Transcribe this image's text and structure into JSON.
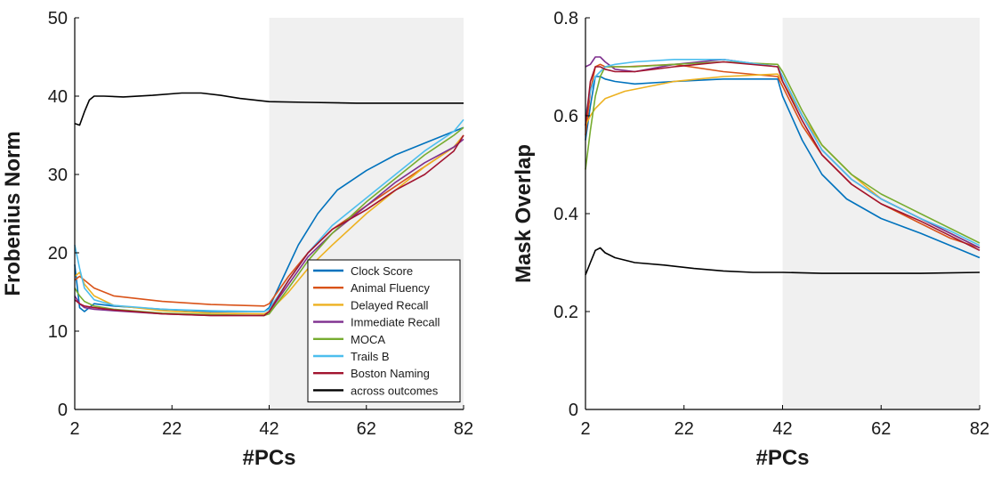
{
  "chart_data": [
    {
      "type": "line",
      "xlabel": "#PCs",
      "ylabel": "Frobenius Norm",
      "xlim": [
        2,
        82
      ],
      "ylim": [
        0,
        50
      ],
      "xticks": [
        "2",
        "22",
        "42",
        "62",
        "82"
      ],
      "yticks": [
        "0",
        "10",
        "20",
        "30",
        "40",
        "50"
      ],
      "shaded_region": [
        42,
        82
      ],
      "shaded_color": "#f0f0f0",
      "legend_position": "lower-right",
      "series": [
        {
          "name": "Clock Score",
          "color": "#0072BD",
          "x": [
            2,
            3,
            4,
            6,
            10,
            20,
            30,
            41,
            42,
            45,
            48,
            52,
            56,
            62,
            68,
            74,
            80,
            82
          ],
          "y": [
            18.5,
            13.0,
            12.5,
            13.5,
            13.2,
            12.8,
            12.5,
            12.5,
            13.0,
            17.0,
            21.0,
            25.0,
            28.0,
            30.5,
            32.5,
            34.0,
            35.5,
            36.0
          ]
        },
        {
          "name": "Animal Fluency",
          "color": "#D95319",
          "x": [
            2,
            3,
            4,
            6,
            10,
            20,
            30,
            41,
            42,
            46,
            50,
            55,
            62,
            68,
            74,
            80,
            82
          ],
          "y": [
            16.5,
            17.0,
            16.5,
            15.5,
            14.5,
            13.8,
            13.4,
            13.2,
            13.5,
            17.0,
            20.0,
            23.0,
            26.0,
            28.5,
            31.0,
            33.5,
            35.0
          ]
        },
        {
          "name": "Delayed Recall",
          "color": "#EDB120",
          "x": [
            2,
            3,
            4,
            6,
            10,
            20,
            30,
            41,
            42,
            46,
            50,
            55,
            62,
            68,
            74,
            80,
            82
          ],
          "y": [
            17.0,
            17.5,
            16.0,
            14.5,
            13.3,
            12.6,
            12.3,
            12.2,
            12.5,
            15.0,
            18.0,
            21.0,
            25.0,
            28.0,
            31.0,
            33.5,
            35.0
          ]
        },
        {
          "name": "Immediate Recall",
          "color": "#7E2F8E",
          "x": [
            2,
            3,
            4,
            6,
            10,
            20,
            30,
            41,
            42,
            46,
            50,
            55,
            62,
            68,
            74,
            80,
            82
          ],
          "y": [
            14.5,
            13.5,
            13.0,
            12.8,
            12.6,
            12.2,
            12.0,
            12.0,
            12.5,
            16.0,
            19.5,
            22.5,
            26.0,
            29.0,
            31.5,
            33.5,
            34.5
          ]
        },
        {
          "name": "MOCA",
          "color": "#77AC30",
          "x": [
            2,
            3,
            4,
            6,
            10,
            20,
            30,
            41,
            42,
            46,
            50,
            55,
            62,
            68,
            74,
            80,
            82
          ],
          "y": [
            15.5,
            14.5,
            13.8,
            13.2,
            12.8,
            12.3,
            12.1,
            12.0,
            12.2,
            15.5,
            19.0,
            22.5,
            26.5,
            29.5,
            32.5,
            35.0,
            36.0
          ]
        },
        {
          "name": "Trails B",
          "color": "#4DBEEE",
          "x": [
            2,
            3,
            4,
            6,
            10,
            20,
            30,
            41,
            42,
            46,
            50,
            55,
            62,
            68,
            74,
            80,
            82
          ],
          "y": [
            21.0,
            18.0,
            15.5,
            14.0,
            13.3,
            12.8,
            12.6,
            12.5,
            12.8,
            16.5,
            20.0,
            23.5,
            27.0,
            30.0,
            33.0,
            35.5,
            37.0
          ]
        },
        {
          "name": "Boston Naming",
          "color": "#A2142F",
          "x": [
            2,
            3,
            4,
            6,
            10,
            20,
            30,
            41,
            42,
            46,
            50,
            55,
            62,
            68,
            74,
            80,
            82
          ],
          "y": [
            14.0,
            13.5,
            13.2,
            13.0,
            12.7,
            12.2,
            12.0,
            12.0,
            12.5,
            16.5,
            20.0,
            23.0,
            25.5,
            28.0,
            30.0,
            33.0,
            35.0
          ]
        },
        {
          "name": "across outcomes",
          "color": "#000000",
          "x": [
            2,
            3,
            4,
            5,
            6,
            8,
            12,
            18,
            24,
            28,
            32,
            36,
            42,
            50,
            60,
            70,
            82
          ],
          "y": [
            36.5,
            36.3,
            38.0,
            39.5,
            40.0,
            40.0,
            39.9,
            40.1,
            40.4,
            40.4,
            40.1,
            39.7,
            39.3,
            39.2,
            39.1,
            39.1,
            39.1
          ]
        }
      ]
    },
    {
      "type": "line",
      "xlabel": "#PCs",
      "ylabel": "Mask Overlap",
      "xlim": [
        2,
        82
      ],
      "ylim": [
        0,
        0.8
      ],
      "xticks": [
        "2",
        "22",
        "42",
        "62",
        "82"
      ],
      "yticks": [
        "0",
        "0.2",
        "0.4",
        "0.6",
        "0.8"
      ],
      "shaded_region": [
        42,
        82
      ],
      "shaded_color": "#f0f0f0",
      "series": [
        {
          "name": "Clock Score",
          "color": "#0072BD",
          "x": [
            2,
            3,
            4,
            5,
            6,
            8,
            12,
            20,
            30,
            41,
            42,
            46,
            50,
            55,
            62,
            70,
            76,
            82
          ],
          "y": [
            0.55,
            0.62,
            0.68,
            0.68,
            0.675,
            0.67,
            0.665,
            0.67,
            0.675,
            0.675,
            0.64,
            0.55,
            0.48,
            0.43,
            0.39,
            0.36,
            0.335,
            0.31
          ]
        },
        {
          "name": "Animal Fluency",
          "color": "#D95319",
          "x": [
            2,
            3,
            4,
            5,
            6,
            10,
            20,
            30,
            41,
            42,
            46,
            50,
            56,
            62,
            70,
            76,
            82
          ],
          "y": [
            0.56,
            0.65,
            0.7,
            0.705,
            0.7,
            0.7,
            0.705,
            0.69,
            0.68,
            0.66,
            0.58,
            0.52,
            0.46,
            0.42,
            0.38,
            0.35,
            0.33
          ]
        },
        {
          "name": "Delayed Recall",
          "color": "#EDB120",
          "x": [
            2,
            3,
            4,
            6,
            10,
            15,
            20,
            30,
            41,
            42,
            46,
            50,
            56,
            62,
            70,
            76,
            82
          ],
          "y": [
            0.58,
            0.6,
            0.615,
            0.635,
            0.65,
            0.66,
            0.67,
            0.68,
            0.685,
            0.67,
            0.6,
            0.54,
            0.48,
            0.43,
            0.39,
            0.36,
            0.33
          ]
        },
        {
          "name": "Immediate Recall",
          "color": "#7E2F8E",
          "x": [
            2,
            3,
            4,
            5,
            6,
            8,
            12,
            20,
            30,
            41,
            42,
            46,
            50,
            56,
            62,
            70,
            76,
            82
          ],
          "y": [
            0.7,
            0.705,
            0.72,
            0.72,
            0.71,
            0.695,
            0.69,
            0.705,
            0.715,
            0.7,
            0.68,
            0.6,
            0.53,
            0.47,
            0.43,
            0.39,
            0.36,
            0.33
          ]
        },
        {
          "name": "MOCA",
          "color": "#77AC30",
          "x": [
            2,
            3,
            4,
            5,
            6,
            8,
            12,
            20,
            30,
            41,
            42,
            46,
            50,
            56,
            62,
            70,
            76,
            82
          ],
          "y": [
            0.49,
            0.57,
            0.64,
            0.68,
            0.7,
            0.7,
            0.7,
            0.705,
            0.71,
            0.705,
            0.69,
            0.61,
            0.54,
            0.48,
            0.44,
            0.4,
            0.37,
            0.34
          ]
        },
        {
          "name": "Trails B",
          "color": "#4DBEEE",
          "x": [
            2,
            3,
            4,
            5,
            6,
            8,
            12,
            20,
            30,
            41,
            42,
            46,
            50,
            56,
            62,
            70,
            76,
            82
          ],
          "y": [
            0.6,
            0.65,
            0.68,
            0.69,
            0.7,
            0.705,
            0.71,
            0.715,
            0.715,
            0.7,
            0.68,
            0.6,
            0.53,
            0.47,
            0.43,
            0.39,
            0.365,
            0.335
          ]
        },
        {
          "name": "Boston Naming",
          "color": "#A2142F",
          "x": [
            2,
            3,
            4,
            5,
            6,
            8,
            12,
            20,
            30,
            41,
            42,
            46,
            50,
            56,
            62,
            70,
            76,
            82
          ],
          "y": [
            0.58,
            0.67,
            0.7,
            0.7,
            0.695,
            0.69,
            0.69,
            0.7,
            0.71,
            0.7,
            0.67,
            0.59,
            0.52,
            0.46,
            0.42,
            0.385,
            0.355,
            0.325
          ]
        },
        {
          "name": "across outcomes",
          "color": "#000000",
          "x": [
            2,
            3,
            4,
            5,
            6,
            8,
            12,
            18,
            24,
            30,
            36,
            42,
            50,
            60,
            70,
            82
          ],
          "y": [
            0.275,
            0.3,
            0.325,
            0.33,
            0.32,
            0.31,
            0.3,
            0.295,
            0.288,
            0.283,
            0.28,
            0.28,
            0.278,
            0.278,
            0.278,
            0.28
          ]
        }
      ]
    }
  ]
}
